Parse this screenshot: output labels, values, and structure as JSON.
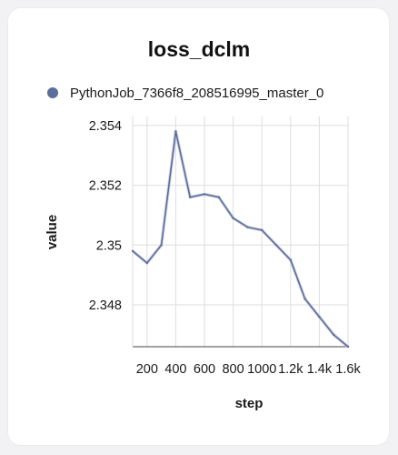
{
  "colors": {
    "series": "#5b6e9a",
    "series_shadow": "#c9cce0",
    "grid": "#dedede",
    "axis": "#444444"
  },
  "chart_data": {
    "type": "line",
    "title": "loss_dclm",
    "xlabel": "step",
    "ylabel": "value",
    "xlim": [
      100,
      1600
    ],
    "ylim": [
      2.3466,
      2.3543
    ],
    "grid": true,
    "legend_position": "top-left",
    "x_ticks": [
      {
        "value": 200,
        "label": "200"
      },
      {
        "value": 400,
        "label": "400"
      },
      {
        "value": 600,
        "label": "600"
      },
      {
        "value": 800,
        "label": "800"
      },
      {
        "value": 1000,
        "label": "1000"
      },
      {
        "value": 1200,
        "label": "1.2k"
      },
      {
        "value": 1400,
        "label": "1.4k"
      },
      {
        "value": 1600,
        "label": "1.6k"
      }
    ],
    "y_ticks": [
      {
        "value": 2.348,
        "label": "2.348"
      },
      {
        "value": 2.35,
        "label": "2.35"
      },
      {
        "value": 2.352,
        "label": "2.352"
      },
      {
        "value": 2.354,
        "label": "2.354"
      }
    ],
    "series": [
      {
        "name": "PythonJob_7366f8_208516995_master_0",
        "x": [
          100,
          200,
          300,
          400,
          500,
          600,
          700,
          800,
          900,
          1000,
          1100,
          1200,
          1300,
          1400,
          1500,
          1600
        ],
        "y": [
          2.3498,
          2.3494,
          2.35,
          2.3538,
          2.3516,
          2.3517,
          2.3516,
          2.3509,
          2.3506,
          2.3505,
          2.35,
          2.3495,
          2.3482,
          2.3476,
          2.347,
          2.3466
        ]
      }
    ]
  }
}
